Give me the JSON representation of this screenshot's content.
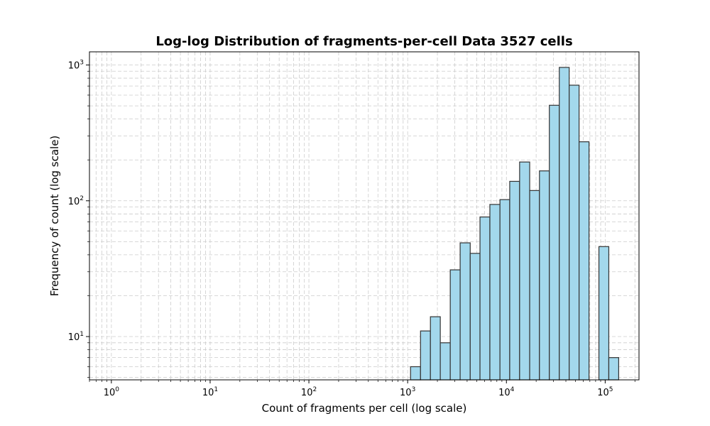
{
  "chart_data": {
    "type": "bar",
    "title": "Log-log Distribution of fragments-per-cell Data 3527 cells",
    "xlabel": "Count of fragments per cell (log scale)",
    "ylabel": "Frequency of count (log scale)",
    "x_scale": "log",
    "y_scale": "log",
    "xlim": [
      0.6,
      220000
    ],
    "ylim": [
      4.8,
      1250
    ],
    "grid": true,
    "x_ticks": [
      {
        "base": "10",
        "exp": "0",
        "value": 1
      },
      {
        "base": "10",
        "exp": "1",
        "value": 10
      },
      {
        "base": "10",
        "exp": "2",
        "value": 100
      },
      {
        "base": "10",
        "exp": "3",
        "value": 1000
      },
      {
        "base": "10",
        "exp": "4",
        "value": 10000
      },
      {
        "base": "10",
        "exp": "5",
        "value": 100000
      }
    ],
    "y_ticks": [
      {
        "base": "10",
        "exp": "1",
        "value": 10
      },
      {
        "base": "10",
        "exp": "2",
        "value": 100
      },
      {
        "base": "10",
        "exp": "3",
        "value": 1000
      }
    ],
    "bin_edges": [
      1070,
      1350,
      1700,
      2140,
      2700,
      3400,
      4300,
      5400,
      6800,
      8600,
      10800,
      13600,
      17200,
      21600,
      27200,
      34300,
      43200,
      54400,
      68600,
      86400,
      108800,
      137000
    ],
    "values": [
      6,
      11,
      14,
      9,
      31,
      49,
      41,
      76,
      94,
      102,
      139,
      193,
      119,
      166,
      505,
      960,
      710,
      272,
      0,
      46,
      7
    ],
    "bar_color": "#a3d8ec",
    "edge_color": "#333333"
  }
}
